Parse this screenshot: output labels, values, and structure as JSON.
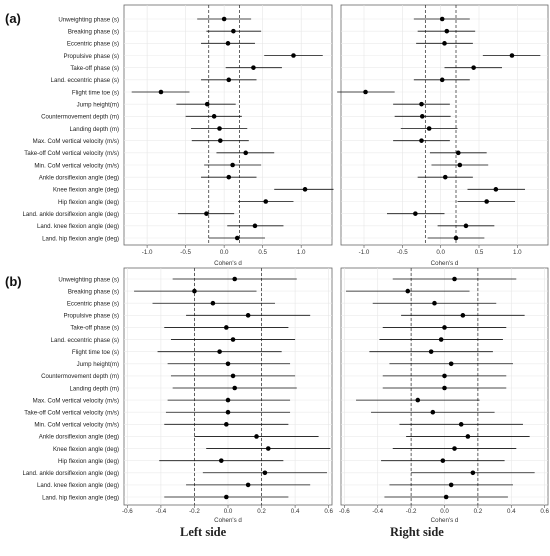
{
  "footer": {
    "left": "Left side",
    "right": "Right side"
  },
  "chart_data": [
    {
      "type": "forest",
      "panel_label": "(a)",
      "xlabel": "Cohen's d",
      "xlim": [
        -1.3,
        1.4
      ],
      "xticks": [
        -1.0,
        -0.5,
        0.0,
        0.5,
        1.0
      ],
      "reference_lines": [
        -0.2,
        0.2
      ],
      "categories": [
        "Unweighting phase (s)",
        "Breaking phase (s)",
        "Eccentric phase (s)",
        "Propulsive phase (s)",
        "Take-off phase (s)",
        "Land. eccentric phase (s)",
        "Flight time toe (s)",
        "Jump height(m)",
        "Countermovement depth (m)",
        "Landing depth (m)",
        "Max. CoM vertical velocity (m/s)",
        "Take-off CoM vertical velocity (m/s)",
        "Min. CoM vertical velocity (m/s)",
        "Ankle dorsiflexion angle (deg)",
        "Knee flexion angle (deg)",
        "Hip flexion angle (deg)",
        "Land. ankle dorsiflexion angle (deg)",
        "Land. knee flexion angle (deg)",
        "Land. hip flexion angle (deg)"
      ],
      "series": [
        {
          "name": "Left side",
          "values": [
            0.0,
            0.12,
            0.05,
            0.9,
            0.38,
            0.06,
            -0.82,
            -0.22,
            -0.13,
            -0.06,
            -0.05,
            0.28,
            0.11,
            0.06,
            1.05,
            0.54,
            -0.23,
            0.4,
            0.17
          ],
          "ci_low": [
            -0.35,
            -0.23,
            -0.3,
            0.52,
            0.02,
            -0.3,
            -1.2,
            -0.62,
            -0.5,
            -0.43,
            -0.42,
            -0.1,
            -0.26,
            -0.3,
            0.65,
            0.18,
            -0.6,
            0.04,
            -0.2
          ],
          "ci_high": [
            0.35,
            0.48,
            0.4,
            1.28,
            0.75,
            0.42,
            -0.45,
            0.15,
            0.23,
            0.3,
            0.32,
            0.65,
            0.48,
            0.42,
            1.42,
            0.9,
            0.13,
            0.77,
            0.53
          ]
        },
        {
          "name": "Right side",
          "values": [
            0.02,
            0.08,
            0.05,
            0.93,
            0.43,
            0.02,
            -0.98,
            -0.25,
            -0.24,
            -0.15,
            -0.25,
            0.23,
            0.25,
            0.06,
            0.72,
            0.6,
            -0.33,
            0.33,
            0.2
          ],
          "ci_low": [
            -0.35,
            -0.3,
            -0.32,
            0.55,
            0.05,
            -0.35,
            -1.35,
            -0.62,
            -0.6,
            -0.52,
            -0.62,
            -0.14,
            -0.12,
            -0.3,
            0.35,
            0.22,
            -0.7,
            -0.04,
            -0.17
          ],
          "ci_high": [
            0.38,
            0.45,
            0.42,
            1.3,
            0.8,
            0.38,
            -0.6,
            0.12,
            0.13,
            0.22,
            0.12,
            0.6,
            0.62,
            0.42,
            1.1,
            0.97,
            0.05,
            0.7,
            0.57
          ]
        }
      ]
    },
    {
      "type": "forest",
      "panel_label": "(b)",
      "xlabel": "Cohen's d",
      "xlim": [
        -0.62,
        0.62
      ],
      "xticks": [
        -0.6,
        -0.4,
        -0.2,
        0.0,
        0.2,
        0.4,
        0.6
      ],
      "reference_lines": [
        -0.2,
        0.2
      ],
      "categories": [
        "Unweighting phase (s)",
        "Breaking phase (s)",
        "Eccentric phase (s)",
        "Propulsive phase (s)",
        "Take-off phase (s)",
        "Land. eccentric phase (s)",
        "Flight time toe (s)",
        "Jump height(m)",
        "Countermovement depth (m)",
        "Landing depth (m)",
        "Max. CoM vertical velocity (m/s)",
        "Take-off CoM vertical velocity (m/s)",
        "Min. CoM vertical velocity (m/s)",
        "Ankle dorsiflexion angle (deg)",
        "Knee flexion angle (deg)",
        "Hip flexion angle (deg)",
        "Land. ankle dorsiflexion angle (deg)",
        "Land. knee flexion angle (deg)",
        "Land. hip flexion angle (deg)"
      ],
      "series": [
        {
          "name": "Left side",
          "values": [
            0.04,
            -0.2,
            -0.09,
            0.12,
            -0.01,
            0.03,
            -0.05,
            0.0,
            0.03,
            0.04,
            0.0,
            0.0,
            -0.01,
            0.17,
            0.24,
            -0.04,
            0.22,
            0.12,
            -0.01
          ],
          "ci_low": [
            -0.33,
            -0.56,
            -0.45,
            -0.25,
            -0.38,
            -0.34,
            -0.42,
            -0.36,
            -0.34,
            -0.33,
            -0.36,
            -0.37,
            -0.38,
            -0.2,
            -0.13,
            -0.41,
            -0.15,
            -0.25,
            -0.38
          ],
          "ci_high": [
            0.41,
            0.17,
            0.28,
            0.49,
            0.36,
            0.4,
            0.32,
            0.37,
            0.4,
            0.41,
            0.37,
            0.37,
            0.36,
            0.54,
            0.61,
            0.33,
            0.59,
            0.49,
            0.36
          ]
        },
        {
          "name": "Right side",
          "values": [
            0.06,
            -0.22,
            -0.06,
            0.11,
            0.0,
            -0.02,
            -0.08,
            0.04,
            0.0,
            0.0,
            -0.16,
            -0.07,
            0.1,
            0.14,
            0.06,
            -0.01,
            0.17,
            0.04,
            0.01
          ],
          "ci_low": [
            -0.31,
            -0.59,
            -0.43,
            -0.26,
            -0.37,
            -0.39,
            -0.45,
            -0.33,
            -0.37,
            -0.37,
            -0.53,
            -0.44,
            -0.27,
            -0.23,
            -0.31,
            -0.38,
            -0.2,
            -0.33,
            -0.36
          ],
          "ci_high": [
            0.43,
            0.15,
            0.31,
            0.48,
            0.37,
            0.35,
            0.29,
            0.41,
            0.37,
            0.37,
            0.21,
            0.3,
            0.47,
            0.51,
            0.43,
            0.36,
            0.54,
            0.41,
            0.38
          ]
        }
      ]
    }
  ]
}
